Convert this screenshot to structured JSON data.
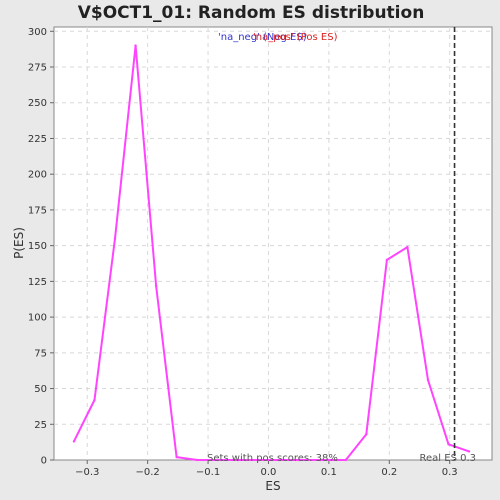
{
  "chart_data": {
    "type": "line",
    "title": "V$OCT1_01: Random ES distribution",
    "xlabel": "ES",
    "ylabel": "P(ES)",
    "xlim": [
      -0.355,
      0.37
    ],
    "ylim": [
      0,
      303
    ],
    "xticks": [
      -0.3,
      -0.2,
      -0.1,
      0.0,
      0.1,
      0.2,
      0.3
    ],
    "xtick_labels": [
      "−0.3",
      "−0.2",
      "−0.1",
      "0.0",
      "0.1",
      "0.2",
      "0.3"
    ],
    "yticks": [
      0,
      25,
      50,
      75,
      100,
      125,
      150,
      175,
      200,
      225,
      250,
      275,
      300
    ],
    "grid": true,
    "legend": {
      "neg_label": "'na_neg' (Neg ES)",
      "pos_label": "'na_pos' (Pos ES)",
      "placement": "top-center"
    },
    "series": [
      {
        "color": "#ff44ff",
        "x": [
          -0.322,
          -0.288,
          -0.254,
          -0.22,
          -0.186,
          -0.152,
          -0.118,
          -0.084,
          -0.05,
          -0.016,
          0.018,
          0.052,
          0.086,
          0.128,
          0.162,
          0.196,
          0.23,
          0.264,
          0.298,
          0.332
        ],
        "y": [
          13,
          42,
          155,
          290,
          122,
          2,
          0,
          0,
          0,
          0,
          0,
          0,
          0,
          0,
          18,
          140,
          149,
          56,
          11,
          6
        ]
      }
    ],
    "annotations": {
      "pos_scores": "Sets with pos scores: 38%",
      "real_es_label": "Real ES 0.3",
      "real_es_value": 0.308
    }
  },
  "colors": {
    "plot_bg": "#ffffff",
    "page_bg": "#e9e9e9",
    "grid": "#d8d8d8",
    "line": "#ff44ff",
    "real_es_line": "#333333"
  }
}
